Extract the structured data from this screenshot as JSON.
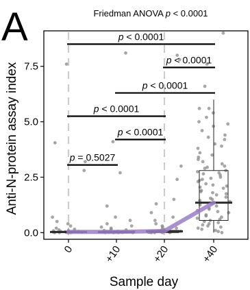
{
  "figure": {
    "panel_letter": "A",
    "title_prefix": "Friedman ANOVA ",
    "title_p": "p",
    "title_suffix": " < 0.0001"
  },
  "chart_data": {
    "type": "box",
    "title": "Friedman ANOVA p < 0.0001",
    "xlabel": "Sample day",
    "ylabel": "Anti-N-protein assay index",
    "categories": [
      "0",
      "+10",
      "+20",
      "+40"
    ],
    "ylim": [
      -0.3,
      9.1
    ],
    "yticks": [
      0.0,
      2.5,
      5.0,
      7.5
    ],
    "ytick_labels": [
      "0.0",
      "2.5",
      "5.0",
      "7.5"
    ],
    "grid": false,
    "reference_line": {
      "style": "dashed",
      "color": "#cccccc",
      "at_categories": [
        "0",
        "+20"
      ]
    },
    "boxes": [
      {
        "category": "0",
        "q1": 0.0,
        "median": 0.03,
        "q3": 0.06,
        "whisker_low": 0.0,
        "whisker_high": 0.1
      },
      {
        "category": "+10",
        "q1": 0.0,
        "median": 0.03,
        "q3": 0.06,
        "whisker_low": 0.0,
        "whisker_high": 0.1
      },
      {
        "category": "+20",
        "q1": 0.0,
        "median": 0.06,
        "q3": 0.1,
        "whisker_low": 0.0,
        "whisker_high": 0.15
      },
      {
        "category": "+40",
        "q1": 0.55,
        "median": 1.35,
        "q3": 2.8,
        "whisker_low": 0.0,
        "whisker_high": 6.0
      }
    ],
    "trend_line": {
      "color": "#9a7cc6",
      "values": [
        0.03,
        0.03,
        0.07,
        1.35
      ]
    },
    "points": [
      {
        "category": "0",
        "values": [
          0.0,
          0.0,
          0.0,
          0.0,
          0.01,
          0.01,
          0.02,
          0.02,
          0.03,
          0.04,
          0.05,
          0.05,
          0.06,
          0.08,
          0.1,
          0.12,
          0.15,
          0.2,
          0.3,
          0.4,
          0.5,
          0.7,
          2.8,
          3.2,
          4.05,
          7.6
        ]
      },
      {
        "category": "+10",
        "values": [
          0.0,
          0.0,
          0.0,
          0.0,
          0.01,
          0.02,
          0.02,
          0.03,
          0.04,
          0.05,
          0.06,
          0.07,
          0.1,
          0.12,
          0.15,
          0.2,
          0.25,
          0.3,
          0.4,
          0.55,
          0.7,
          1.2,
          2.7,
          4.1,
          8.1
        ]
      },
      {
        "category": "+20",
        "values": [
          0.0,
          0.0,
          0.0,
          0.0,
          0.01,
          0.02,
          0.03,
          0.04,
          0.05,
          0.06,
          0.08,
          0.1,
          0.12,
          0.15,
          0.2,
          0.25,
          0.3,
          0.4,
          0.55,
          0.7,
          0.9,
          1.3,
          1.5,
          2.4,
          3.0,
          7.8,
          8.0
        ]
      },
      {
        "category": "+40",
        "values": [
          0.0,
          0.05,
          0.1,
          0.2,
          0.3,
          0.4,
          0.5,
          0.55,
          0.6,
          0.7,
          0.8,
          0.9,
          1.0,
          1.1,
          1.2,
          1.3,
          1.35,
          1.4,
          1.5,
          1.6,
          1.7,
          1.8,
          1.9,
          2.0,
          2.1,
          2.2,
          2.3,
          2.4,
          2.5,
          2.6,
          2.7,
          2.8,
          2.9,
          3.0,
          3.2,
          3.4,
          3.6,
          3.8,
          4.0,
          4.2,
          4.4,
          4.6,
          4.8,
          5.0,
          5.2,
          5.4,
          5.6,
          5.6,
          6.6,
          7.6,
          9.0,
          0.15,
          0.35,
          0.65,
          0.95,
          1.25,
          1.55,
          1.85,
          2.15,
          2.45,
          2.75,
          3.1,
          3.5,
          3.9,
          4.3,
          4.9,
          0.25,
          0.45,
          0.75,
          1.05,
          1.45,
          1.75,
          2.05,
          2.35,
          2.65,
          2.95,
          3.3
        ]
      }
    ],
    "comparisons": [
      {
        "from": "0",
        "to": "+40",
        "y": 8.5,
        "text_prefix": "",
        "p": "p",
        "text": " < 0.0001"
      },
      {
        "from": "+20",
        "to": "+40",
        "y": 7.45,
        "text_prefix": "",
        "p": "p",
        "text": " < 0.0001"
      },
      {
        "from": "+10",
        "to": "+40",
        "y": 6.3,
        "text_prefix": "",
        "p": "p",
        "text": " < 0.0001"
      },
      {
        "from": "0",
        "to": "+20",
        "y": 5.25,
        "text_prefix": "",
        "p": "p",
        "text": " < 0.0001"
      },
      {
        "from": "+10",
        "to": "+20",
        "y": 4.2,
        "text_prefix": "",
        "p": "p",
        "text": " < 0.0001"
      },
      {
        "from": "0",
        "to": "+10",
        "y": 3.05,
        "text_prefix": "",
        "p": "p",
        "text": " = 0.5027"
      }
    ]
  }
}
